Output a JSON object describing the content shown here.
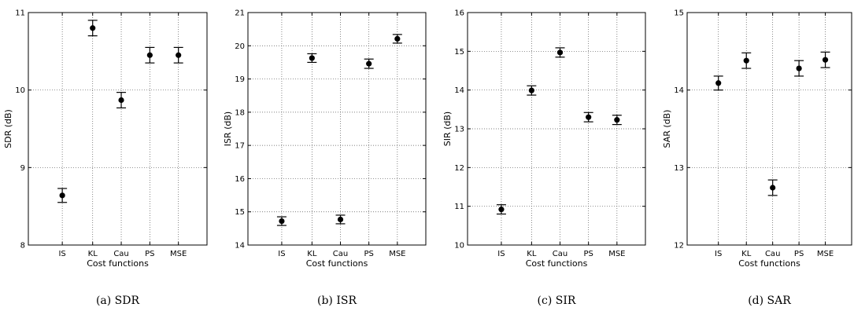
{
  "chart_data": [
    {
      "type": "scatter",
      "caption": "(a) SDR",
      "ylabel": "SDR (dB)",
      "xlabel": "Cost functions",
      "categories": [
        "IS",
        "KL",
        "Cau",
        "PS",
        "MSE"
      ],
      "values": [
        8.64,
        10.8,
        9.87,
        10.45,
        10.45
      ],
      "err": [
        0.09,
        0.1,
        0.1,
        0.1,
        0.1
      ],
      "ylim": [
        8,
        11
      ],
      "yticks": [
        8,
        9,
        10,
        11
      ],
      "grid": true
    },
    {
      "type": "scatter",
      "caption": "(b) ISR",
      "ylabel": "ISR (dB)",
      "xlabel": "Cost functions",
      "categories": [
        "IS",
        "KL",
        "Cau",
        "PS",
        "MSE"
      ],
      "values": [
        14.72,
        19.63,
        14.77,
        19.46,
        20.21
      ],
      "err": [
        0.13,
        0.13,
        0.13,
        0.14,
        0.13
      ],
      "ylim": [
        14,
        21
      ],
      "yticks": [
        14,
        15,
        16,
        17,
        18,
        19,
        20,
        21
      ],
      "grid": true
    },
    {
      "type": "scatter",
      "caption": "(c) SIR",
      "ylabel": "SIR (dB)",
      "xlabel": "Cost functions",
      "categories": [
        "IS",
        "KL",
        "Cau",
        "PS",
        "MSE"
      ],
      "values": [
        10.92,
        13.99,
        14.97,
        13.3,
        13.23
      ],
      "err": [
        0.12,
        0.12,
        0.12,
        0.12,
        0.12
      ],
      "ylim": [
        10,
        16
      ],
      "yticks": [
        10,
        11,
        12,
        13,
        14,
        15,
        16
      ],
      "grid": true
    },
    {
      "type": "scatter",
      "caption": "(d) SAR",
      "ylabel": "SAR (dB)",
      "xlabel": "Cost functions",
      "categories": [
        "IS",
        "KL",
        "Cau",
        "PS",
        "MSE"
      ],
      "values": [
        14.09,
        14.38,
        12.74,
        14.28,
        14.39
      ],
      "err": [
        0.09,
        0.1,
        0.1,
        0.1,
        0.1
      ],
      "ylim": [
        12,
        15
      ],
      "yticks": [
        12,
        13,
        14,
        15
      ],
      "grid": true
    }
  ]
}
